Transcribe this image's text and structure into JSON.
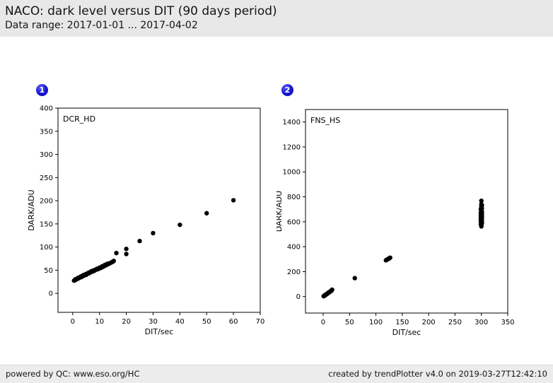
{
  "header": {
    "title": "NACO: dark level versus DIT (90 days period)",
    "subtitle": "Data range: 2017-01-01 ... 2017-04-02"
  },
  "badges": [
    {
      "label": "1"
    },
    {
      "label": "2"
    }
  ],
  "footer": {
    "left": "powered by QC: www.eso.org/HC",
    "right": "created by trendPlotter v4.0 on 2019-03-27T12:42:10"
  },
  "colors": {
    "badge_blue": "#1414cf",
    "header_bg": "#e8e8e8",
    "footer_bg": "#ececec",
    "point_color": "#000000",
    "frame_color": "#000000"
  },
  "chart_data": [
    {
      "type": "scatter",
      "inner_label": "DCR_HD",
      "xlabel": "DIT/sec",
      "ylabel": "DARK/ADU",
      "xlim": [
        -5.5,
        70
      ],
      "ylim": [
        -41,
        400
      ],
      "xticks": [
        0,
        10,
        20,
        30,
        40,
        50,
        60,
        70
      ],
      "yticks": [
        0,
        50,
        100,
        150,
        200,
        250,
        300,
        350,
        400
      ],
      "grid": false,
      "legend": "none",
      "points": [
        [
          0.5,
          27.5
        ],
        [
          0.7,
          28
        ],
        [
          1,
          29
        ],
        [
          1,
          30.5
        ],
        [
          1.3,
          30
        ],
        [
          1.5,
          31
        ],
        [
          1.8,
          31.5
        ],
        [
          2,
          32
        ],
        [
          2,
          33.5
        ],
        [
          2.3,
          33
        ],
        [
          2.5,
          34
        ],
        [
          2.8,
          34.5
        ],
        [
          3,
          35
        ],
        [
          3,
          36.5
        ],
        [
          3.3,
          35.5
        ],
        [
          3.5,
          37
        ],
        [
          3.8,
          37.5
        ],
        [
          4,
          38
        ],
        [
          4,
          39.5
        ],
        [
          4.3,
          38.5
        ],
        [
          4.5,
          40
        ],
        [
          4.8,
          40.5
        ],
        [
          5,
          40
        ],
        [
          5,
          42
        ],
        [
          5.3,
          41.5
        ],
        [
          5.5,
          42.5
        ],
        [
          5.8,
          43
        ],
        [
          6,
          43.5
        ],
        [
          6,
          45
        ],
        [
          6.3,
          44
        ],
        [
          6.5,
          45.5
        ],
        [
          6.8,
          46
        ],
        [
          7,
          46.5
        ],
        [
          7,
          48
        ],
        [
          7.3,
          47
        ],
        [
          7.5,
          48.5
        ],
        [
          7.8,
          49
        ],
        [
          8,
          48.5
        ],
        [
          8,
          50
        ],
        [
          8.5,
          50.5
        ],
        [
          9,
          51.5
        ],
        [
          9,
          53
        ],
        [
          9.5,
          52.5
        ],
        [
          10,
          54
        ],
        [
          10,
          55.5
        ],
        [
          10.5,
          55
        ],
        [
          11,
          56.5
        ],
        [
          11,
          58.5
        ],
        [
          11.5,
          58
        ],
        [
          12,
          59.5
        ],
        [
          12,
          61.5
        ],
        [
          12.5,
          61
        ],
        [
          13,
          62.5
        ],
        [
          13,
          64
        ],
        [
          13.5,
          64
        ],
        [
          14,
          65.5
        ],
        [
          14.5,
          67
        ],
        [
          15,
          68.5
        ],
        [
          15.3,
          70
        ],
        [
          16.3,
          87
        ],
        [
          20,
          85
        ],
        [
          20,
          96
        ],
        [
          25,
          113
        ],
        [
          30,
          130
        ],
        [
          40,
          148
        ],
        [
          50,
          173
        ],
        [
          60,
          201
        ]
      ]
    },
    {
      "type": "scatter",
      "inner_label": "FNS_HS",
      "xlabel": "DIT/sec",
      "ylabel": "DARK/ADU",
      "xlim": [
        -33.5,
        350
      ],
      "ylim": [
        -132,
        1500
      ],
      "xticks": [
        0,
        50,
        100,
        150,
        200,
        250,
        300,
        350
      ],
      "yticks": [
        0,
        200,
        400,
        600,
        800,
        1000,
        1200,
        1400
      ],
      "grid": false,
      "legend": "none",
      "points": [
        [
          1,
          3
        ],
        [
          1.5,
          5
        ],
        [
          2,
          6
        ],
        [
          2,
          8
        ],
        [
          2.5,
          7
        ],
        [
          3,
          9
        ],
        [
          3.5,
          10
        ],
        [
          4,
          12
        ],
        [
          4.5,
          13
        ],
        [
          5,
          15
        ],
        [
          5,
          17
        ],
        [
          6,
          18
        ],
        [
          6.5,
          19
        ],
        [
          7,
          21
        ],
        [
          8,
          24
        ],
        [
          8.5,
          25
        ],
        [
          9,
          27
        ],
        [
          10,
          30
        ],
        [
          10,
          32
        ],
        [
          11,
          33
        ],
        [
          12,
          36
        ],
        [
          13,
          39
        ],
        [
          13.5,
          41
        ],
        [
          14,
          43
        ],
        [
          15,
          46
        ],
        [
          16,
          49
        ],
        [
          16.5,
          52
        ],
        [
          17,
          55
        ],
        [
          60,
          148
        ],
        [
          119,
          291
        ],
        [
          121,
          296
        ],
        [
          122,
          299
        ],
        [
          124,
          303
        ],
        [
          125,
          306
        ],
        [
          126,
          309
        ],
        [
          127,
          312
        ],
        [
          300,
          563
        ],
        [
          300,
          572
        ],
        [
          299,
          580
        ],
        [
          301,
          588
        ],
        [
          300,
          595
        ],
        [
          299,
          602
        ],
        [
          301,
          608
        ],
        [
          300,
          615
        ],
        [
          299,
          621
        ],
        [
          301,
          627
        ],
        [
          300,
          633
        ],
        [
          299,
          639
        ],
        [
          301,
          645
        ],
        [
          300,
          650
        ],
        [
          299,
          656
        ],
        [
          301,
          662
        ],
        [
          300,
          668
        ],
        [
          299,
          674
        ],
        [
          301,
          680
        ],
        [
          300,
          686
        ],
        [
          300,
          693
        ],
        [
          299,
          700
        ],
        [
          301,
          707
        ],
        [
          300,
          715
        ],
        [
          300,
          724
        ],
        [
          301,
          733
        ],
        [
          300,
          740
        ],
        [
          300,
          768
        ]
      ]
    }
  ]
}
